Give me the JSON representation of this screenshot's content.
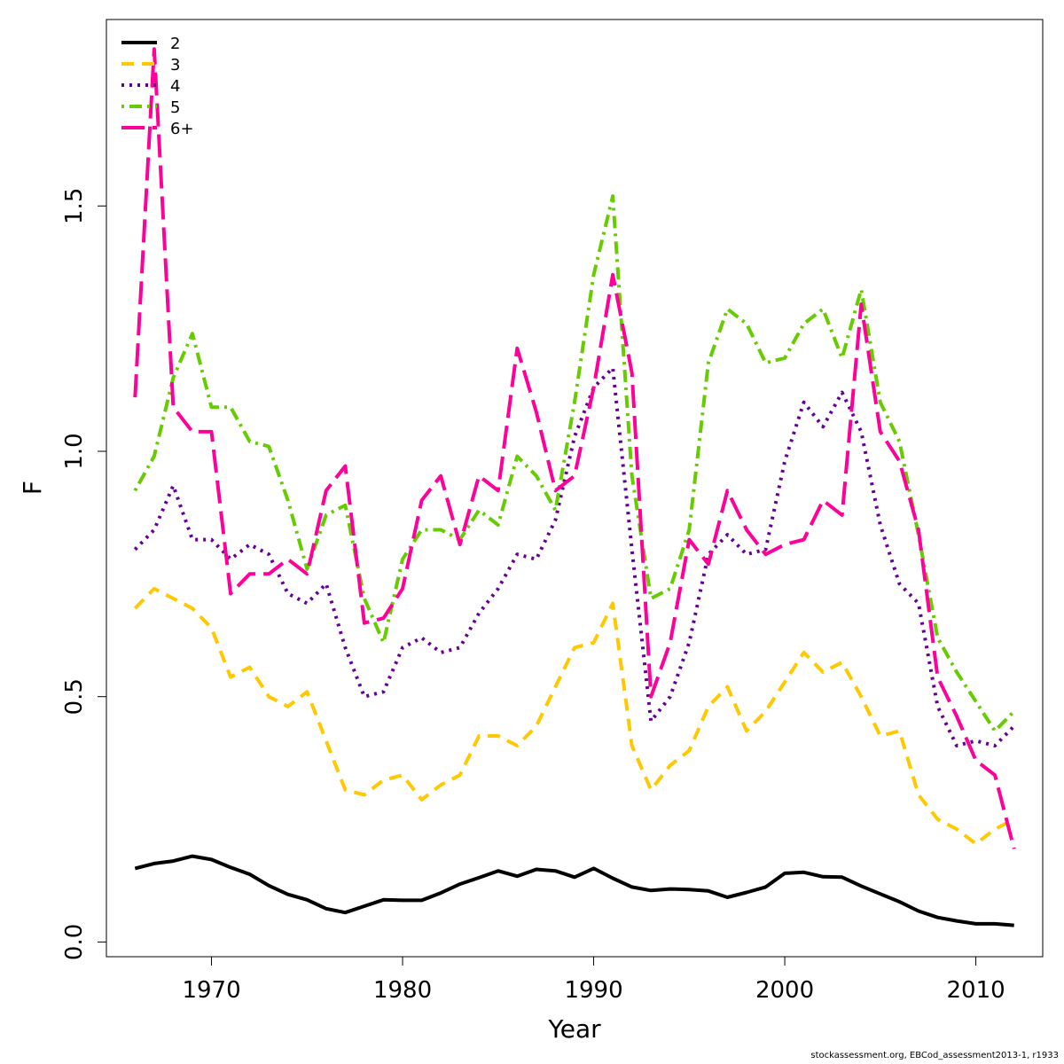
{
  "chart_data": {
    "type": "line",
    "title": "",
    "xlabel": "Year",
    "ylabel": "F",
    "xlim": [
      1964.5,
      2013.5
    ],
    "ylim": [
      -0.03,
      1.88
    ],
    "x_ticks": [
      1970,
      1980,
      1990,
      2000,
      2010
    ],
    "y_ticks": [
      0.0,
      0.5,
      1.0,
      1.5
    ],
    "x_tick_labels": [
      "1970",
      "1980",
      "1990",
      "2000",
      "2010"
    ],
    "y_tick_labels": [
      "0.0",
      "0.5",
      "1.0",
      "1.5"
    ],
    "grid": false,
    "legend_position": "top-left",
    "x": [
      1966,
      1967,
      1968,
      1969,
      1970,
      1971,
      1972,
      1973,
      1974,
      1975,
      1976,
      1977,
      1978,
      1979,
      1980,
      1981,
      1982,
      1983,
      1984,
      1985,
      1986,
      1987,
      1988,
      1989,
      1990,
      1991,
      1992,
      1993,
      1994,
      1995,
      1996,
      1997,
      1998,
      1999,
      2000,
      2001,
      2002,
      2003,
      2004,
      2005,
      2006,
      2007,
      2008,
      2009,
      2010,
      2011,
      2012
    ],
    "series": [
      {
        "name": "2",
        "color": "#000000",
        "dash": "solid",
        "values": [
          0.15,
          0.16,
          0.165,
          0.175,
          0.168,
          0.152,
          0.138,
          0.115,
          0.097,
          0.086,
          0.068,
          0.06,
          0.073,
          0.086,
          0.085,
          0.085,
          0.1,
          0.118,
          0.131,
          0.145,
          0.134,
          0.148,
          0.145,
          0.132,
          0.15,
          0.13,
          0.112,
          0.105,
          0.108,
          0.107,
          0.104,
          0.091,
          0.101,
          0.112,
          0.14,
          0.142,
          0.133,
          0.132,
          0.114,
          0.098,
          0.082,
          0.063,
          0.05,
          0.043,
          0.037,
          0.037,
          0.034
        ]
      },
      {
        "name": "3",
        "color": "#FFC800",
        "dash": "dashed",
        "values": [
          0.68,
          0.72,
          0.7,
          0.68,
          0.64,
          0.54,
          0.56,
          0.5,
          0.48,
          0.51,
          0.41,
          0.31,
          0.3,
          0.33,
          0.34,
          0.29,
          0.32,
          0.34,
          0.42,
          0.42,
          0.4,
          0.44,
          0.52,
          0.6,
          0.61,
          0.69,
          0.4,
          0.31,
          0.36,
          0.39,
          0.48,
          0.52,
          0.43,
          0.47,
          0.53,
          0.59,
          0.55,
          0.57,
          0.5,
          0.42,
          0.43,
          0.3,
          0.25,
          0.23,
          0.2,
          0.23,
          0.25
        ]
      },
      {
        "name": "4",
        "color": "#660099",
        "dash": "dotted",
        "values": [
          0.8,
          0.84,
          0.93,
          0.82,
          0.82,
          0.78,
          0.81,
          0.79,
          0.71,
          0.69,
          0.73,
          0.6,
          0.5,
          0.51,
          0.6,
          0.62,
          0.59,
          0.6,
          0.67,
          0.72,
          0.79,
          0.78,
          0.86,
          1.03,
          1.13,
          1.17,
          0.8,
          0.45,
          0.5,
          0.61,
          0.79,
          0.83,
          0.79,
          0.8,
          0.98,
          1.1,
          1.05,
          1.12,
          1.04,
          0.85,
          0.73,
          0.69,
          0.48,
          0.4,
          0.41,
          0.4,
          0.44
        ]
      },
      {
        "name": "5",
        "color": "#66CC00",
        "dash": "dotdash",
        "values": [
          0.92,
          0.99,
          1.15,
          1.24,
          1.09,
          1.09,
          1.02,
          1.01,
          0.9,
          0.76,
          0.87,
          0.89,
          0.7,
          0.61,
          0.78,
          0.84,
          0.84,
          0.82,
          0.88,
          0.85,
          0.99,
          0.95,
          0.88,
          1.1,
          1.36,
          1.52,
          0.95,
          0.7,
          0.72,
          0.84,
          1.18,
          1.29,
          1.26,
          1.18,
          1.19,
          1.26,
          1.29,
          1.19,
          1.33,
          1.1,
          1.02,
          0.83,
          0.62,
          0.55,
          0.49,
          0.43,
          0.47
        ]
      },
      {
        "name": "6+",
        "color": "#FF0099",
        "dash": "longdash",
        "values": [
          1.11,
          1.82,
          1.09,
          1.04,
          1.04,
          0.71,
          0.75,
          0.75,
          0.78,
          0.75,
          0.92,
          0.97,
          0.65,
          0.66,
          0.72,
          0.9,
          0.95,
          0.81,
          0.95,
          0.92,
          1.21,
          1.08,
          0.92,
          0.95,
          1.13,
          1.36,
          1.16,
          0.5,
          0.61,
          0.82,
          0.77,
          0.92,
          0.84,
          0.79,
          0.81,
          0.82,
          0.9,
          0.87,
          1.3,
          1.04,
          0.98,
          0.84,
          0.54,
          0.46,
          0.37,
          0.34,
          0.19
        ]
      }
    ]
  },
  "footer_text": "stockassessment.org, EBCod_assessment2013-1, r1933"
}
